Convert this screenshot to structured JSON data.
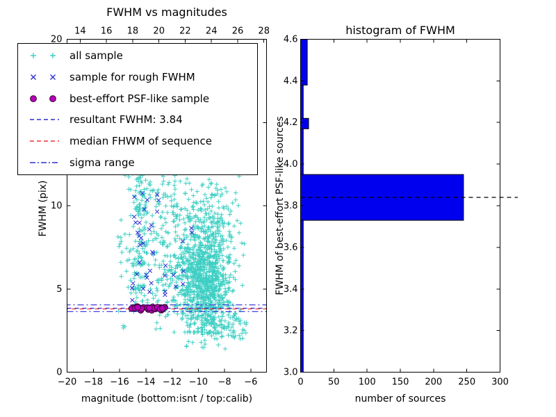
{
  "figure": {
    "background": "#ffffff"
  },
  "colors": {
    "cyan": "#3ecfc4",
    "blue": "#2b2bd5",
    "red": "#f03030",
    "magenta": "#bb00bb",
    "magenta_edge": "#33002e",
    "hist_bar": "#0000ee",
    "black": "#000000"
  },
  "legend": {
    "items": [
      {
        "label": "all sample",
        "marker": "plus",
        "color": "cyan"
      },
      {
        "label": "sample for rough FWHM",
        "marker": "x",
        "color": "blue"
      },
      {
        "label": "best-effort PSF-like sample",
        "marker": "circle",
        "color": "magenta"
      },
      {
        "label": "resultant FWHM: 3.84",
        "marker": "dashed-line",
        "color": "blue"
      },
      {
        "label": "median FHWM of sequence",
        "marker": "dashed-line",
        "color": "red"
      },
      {
        "label": "sigma range",
        "marker": "dashdot-line",
        "color": "blue"
      }
    ]
  },
  "chart_data": [
    {
      "type": "scatter",
      "title": "FWHM vs magnitudes",
      "xlabel": "magnitude (bottom:isnt / top:calib)",
      "ylabel": "FWHM (pix)",
      "xlim": [
        -20,
        -4.8
      ],
      "top_xlim": [
        13,
        28.2
      ],
      "ylim": [
        0,
        20
      ],
      "x_ticks": {
        "values": [
          -20,
          -18,
          -16,
          -14,
          -12,
          -10,
          -8,
          -6
        ],
        "labels": [
          "−20",
          "−18",
          "−16",
          "−14",
          "−12",
          "−10",
          "−8",
          "−6"
        ]
      },
      "top_ticks": {
        "values": [
          14,
          16,
          18,
          20,
          22,
          24,
          26,
          28
        ],
        "labels": [
          "14",
          "16",
          "18",
          "20",
          "22",
          "24",
          "26",
          "28"
        ]
      },
      "y_ticks": {
        "values": [
          0,
          5,
          10,
          15,
          20
        ],
        "labels": [
          "0",
          "5",
          "10",
          "15",
          "20"
        ]
      },
      "series": [
        {
          "name": "all sample",
          "marker": "plus",
          "color": "cyan",
          "size": 3.2,
          "clusters": [
            {
              "n": 750,
              "x": {
                "t": "n",
                "m": -9.6,
                "s": 0.95
              },
              "y": {
                "t": "n",
                "m": 5.2,
                "s": 1.5
              },
              "cx": [
                -12.6,
                -6.1
              ],
              "cy": [
                2.4,
                12.8
              ]
            },
            {
              "n": 300,
              "x": {
                "t": "n",
                "m": -9.4,
                "s": 1.15
              },
              "y": {
                "t": "n",
                "m": 8.0,
                "s": 1.9
              },
              "cx": [
                -12.8,
                -6.2
              ],
              "cy": [
                3.0,
                13.4
              ]
            },
            {
              "n": 200,
              "x": {
                "t": "n",
                "m": -14.45,
                "s": 0.5
              },
              "y": {
                "t": "u",
                "min": 3.5,
                "max": 12.9
              },
              "cx": [
                -15.9,
                -13.3
              ]
            },
            {
              "n": 130,
              "x": {
                "t": "u",
                "min": -13.5,
                "max": -11.2
              },
              "y": {
                "t": "u",
                "min": 3.2,
                "max": 12.6
              }
            },
            {
              "n": 130,
              "x": {
                "t": "u",
                "min": -16.2,
                "max": -6.2
              },
              "y": {
                "t": "u",
                "min": 2.4,
                "max": 13.3
              }
            },
            {
              "n": 80,
              "x": {
                "t": "u",
                "min": -9.8,
                "max": -6.3
              },
              "y": {
                "t": "u",
                "min": 2.0,
                "max": 3.5
              }
            },
            {
              "n": 15,
              "x": {
                "t": "u",
                "min": -14.0,
                "max": -8.0
              },
              "y": {
                "t": "u",
                "min": 12.9,
                "max": 14.0
              }
            },
            {
              "n": 12,
              "x": {
                "t": "u",
                "min": -11.5,
                "max": -7.5
              },
              "y": {
                "t": "u",
                "min": 1.3,
                "max": 2.1
              }
            }
          ]
        },
        {
          "name": "sample for rough FWHM",
          "marker": "x",
          "color": "blue",
          "size": 2.8,
          "clusters": [
            {
              "n": 16,
              "x": {
                "t": "n",
                "m": -14.3,
                "s": 0.3
              },
              "y": {
                "t": "u",
                "min": 4.3,
                "max": 11.4
              }
            },
            {
              "n": 7,
              "x": {
                "t": "n",
                "m": -13.7,
                "s": 0.2
              },
              "y": {
                "t": "u",
                "min": 4.2,
                "max": 9.2
              }
            },
            {
              "n": 6,
              "x": {
                "t": "u",
                "min": -12.6,
                "max": -11.7
              },
              "y": {
                "t": "u",
                "min": 4.4,
                "max": 7.0
              }
            },
            {
              "n": 5,
              "x": {
                "t": "u",
                "min": -11.3,
                "max": -10.3
              },
              "y": {
                "t": "u",
                "min": 5.2,
                "max": 9.5
              }
            },
            {
              "n": 4,
              "x": {
                "t": "u",
                "min": -15.1,
                "max": -14.6
              },
              "y": {
                "t": "u",
                "min": 4.1,
                "max": 6.2
              }
            },
            {
              "n": 3,
              "x": {
                "t": "u",
                "min": -13.3,
                "max": -12.7
              },
              "y": {
                "t": "u",
                "min": 9.5,
                "max": 11.0
              }
            }
          ]
        },
        {
          "name": "best-effort PSF-like sample",
          "marker": "circle",
          "color": "magenta",
          "size": 4.2,
          "clusters": [
            {
              "n": 30,
              "x": {
                "t": "u",
                "min": -15.25,
                "max": -12.5
              },
              "y": {
                "t": "n",
                "m": 3.84,
                "s": 0.05
              },
              "cy": [
                3.72,
                3.97
              ]
            }
          ]
        }
      ],
      "hlines": [
        {
          "name": "resultant FWHM",
          "y": 3.84,
          "style": "dashed",
          "color": "blue"
        },
        {
          "name": "median FHWM of sequence",
          "y": 3.8,
          "style": "dashed",
          "color": "red"
        },
        {
          "name": "sigma range lower",
          "y": 3.64,
          "style": "dashdot",
          "color": "blue"
        },
        {
          "name": "sigma range upper",
          "y": 4.04,
          "style": "dashdot",
          "color": "blue"
        }
      ],
      "resultant_fwhm": 3.84
    },
    {
      "type": "barh",
      "title": "histogram of FWHM",
      "xlabel": "number of sources",
      "ylabel": "FWHM of best-effort PSF-like sources",
      "xlim": [
        0,
        300
      ],
      "ylim": [
        3.0,
        4.6
      ],
      "x_ticks": {
        "values": [
          0,
          50,
          100,
          150,
          200,
          250,
          300
        ],
        "labels": [
          "0",
          "50",
          "100",
          "150",
          "200",
          "250",
          "300"
        ]
      },
      "y_ticks": {
        "values": [
          3.0,
          3.2,
          3.4,
          3.6,
          3.8,
          4.0,
          4.2,
          4.4,
          4.6
        ],
        "labels": [
          "3.0",
          "3.2",
          "3.4",
          "3.6",
          "3.8",
          "4.0",
          "4.2",
          "4.4",
          "4.6"
        ]
      },
      "bars": [
        {
          "y0": 3.0,
          "y1": 3.73,
          "count": 4
        },
        {
          "y0": 3.73,
          "y1": 3.95,
          "count": 245
        },
        {
          "y0": 3.95,
          "y1": 4.17,
          "count": 4
        },
        {
          "y0": 4.17,
          "y1": 4.22,
          "count": 12
        },
        {
          "y0": 4.22,
          "y1": 4.38,
          "count": 4
        },
        {
          "y0": 4.38,
          "y1": 4.6,
          "count": 10
        }
      ],
      "dashed_line_y": 3.84
    }
  ]
}
